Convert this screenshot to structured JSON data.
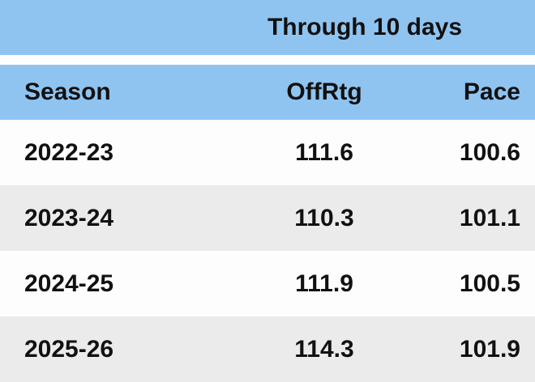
{
  "chart_data": {
    "type": "table",
    "title": "Through 10 days",
    "columns": [
      "Season",
      "OffRtg",
      "Pace"
    ],
    "rows": [
      [
        "2022-23",
        "111.6",
        "100.6"
      ],
      [
        "2023-24",
        "110.3",
        "101.1"
      ],
      [
        "2024-25",
        "111.9",
        "100.5"
      ],
      [
        "2025-26",
        "114.3",
        "101.9"
      ]
    ]
  },
  "colors": {
    "header_bg": "#8FC4F1",
    "row_bg": "#FDFDFD",
    "row_alt_bg": "#EBEBEB",
    "text": "#111111"
  }
}
